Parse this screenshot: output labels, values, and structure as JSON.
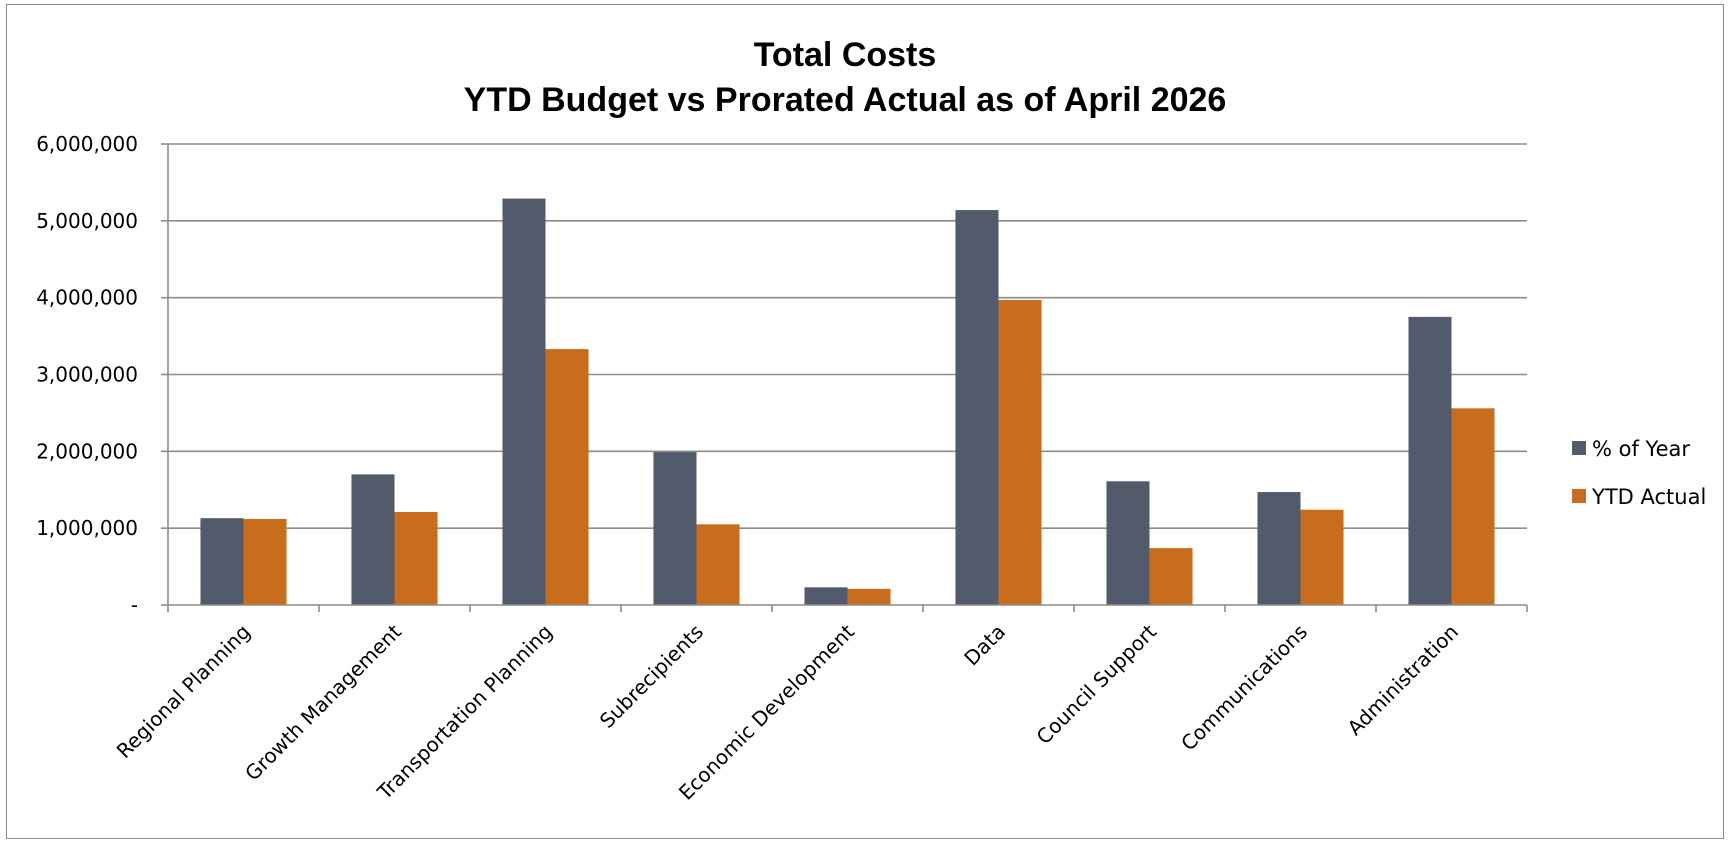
{
  "chart_data": {
    "type": "bar",
    "title_line1": "Total Costs",
    "title_line2": "YTD Budget vs Prorated Actual as of April 2026",
    "xlabel": "",
    "ylabel": "",
    "ylim": [
      0,
      6000000
    ],
    "yticks": [
      0,
      1000000,
      2000000,
      3000000,
      4000000,
      5000000,
      6000000
    ],
    "ytick_labels": [
      "-",
      "1,000,000",
      "2,000,000",
      "3,000,000",
      "4,000,000",
      "5,000,000",
      "6,000,000"
    ],
    "grid": true,
    "legend_position": "right",
    "categories": [
      "Regional Planning",
      "Growth Management",
      "Transportation Planning",
      "Subrecipients",
      "Economic Development",
      "Data",
      "Council Support",
      "Communications",
      "Administration"
    ],
    "series": [
      {
        "name": "% of Year",
        "color": "#525b6b",
        "values": [
          1130000,
          1700000,
          5290000,
          1990000,
          230000,
          5140000,
          1610000,
          1470000,
          3750000
        ]
      },
      {
        "name": "YTD Actual",
        "color": "#c96d1c",
        "values": [
          1120000,
          1210000,
          3330000,
          1050000,
          210000,
          3970000,
          740000,
          1240000,
          2560000
        ]
      }
    ]
  }
}
